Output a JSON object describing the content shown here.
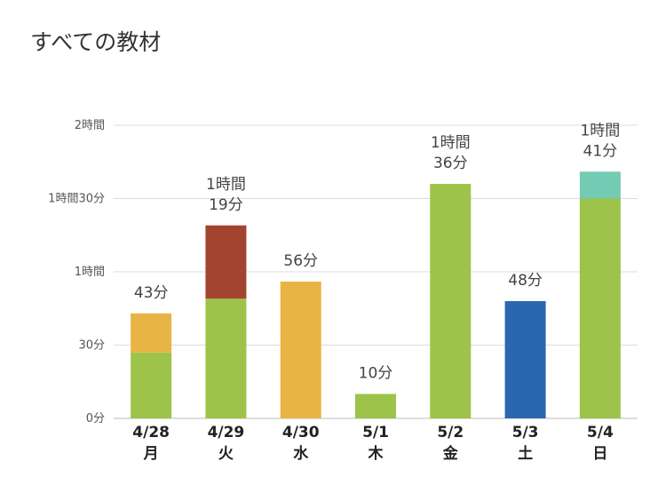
{
  "chart_data": {
    "type": "bar",
    "title": "すべての教材",
    "stacked": true,
    "unit": "minutes",
    "ylim": [
      0,
      120
    ],
    "yticks": [
      {
        "value": 0,
        "label": "0分"
      },
      {
        "value": 30,
        "label": "30分"
      },
      {
        "value": 60,
        "label": "1時間"
      },
      {
        "value": 90,
        "label": "1時間30分"
      },
      {
        "value": 120,
        "label": "2時間"
      }
    ],
    "grid": true,
    "categories": [
      {
        "date": "4/28",
        "day": "月"
      },
      {
        "date": "4/29",
        "day": "火"
      },
      {
        "date": "4/30",
        "day": "水"
      },
      {
        "date": "5/1",
        "day": "木"
      },
      {
        "date": "5/2",
        "day": "金"
      },
      {
        "date": "5/3",
        "day": "土"
      },
      {
        "date": "5/4",
        "day": "日"
      }
    ],
    "totals": [
      {
        "value": 43,
        "label": [
          "43分"
        ]
      },
      {
        "value": 79,
        "label": [
          "1時間",
          "19分"
        ]
      },
      {
        "value": 56,
        "label": [
          "56分"
        ]
      },
      {
        "value": 10,
        "label": [
          "10分"
        ]
      },
      {
        "value": 96,
        "label": [
          "1時間",
          "36分"
        ]
      },
      {
        "value": 48,
        "label": [
          "48分"
        ]
      },
      {
        "value": 101,
        "label": [
          "1時間",
          "41分"
        ]
      }
    ],
    "series": [
      {
        "color": "#9dc34a",
        "values": [
          27,
          49,
          0,
          10,
          96,
          0,
          90
        ]
      },
      {
        "color": "#e8b445",
        "values": [
          16,
          0,
          56,
          0,
          0,
          0,
          0
        ]
      },
      {
        "color": "#a34431",
        "values": [
          0,
          30,
          0,
          0,
          0,
          0,
          0
        ]
      },
      {
        "color": "#2b66b0",
        "values": [
          0,
          0,
          0,
          0,
          0,
          48,
          0
        ]
      },
      {
        "color": "#74cbb3",
        "values": [
          0,
          0,
          0,
          0,
          0,
          0,
          11
        ]
      }
    ]
  }
}
